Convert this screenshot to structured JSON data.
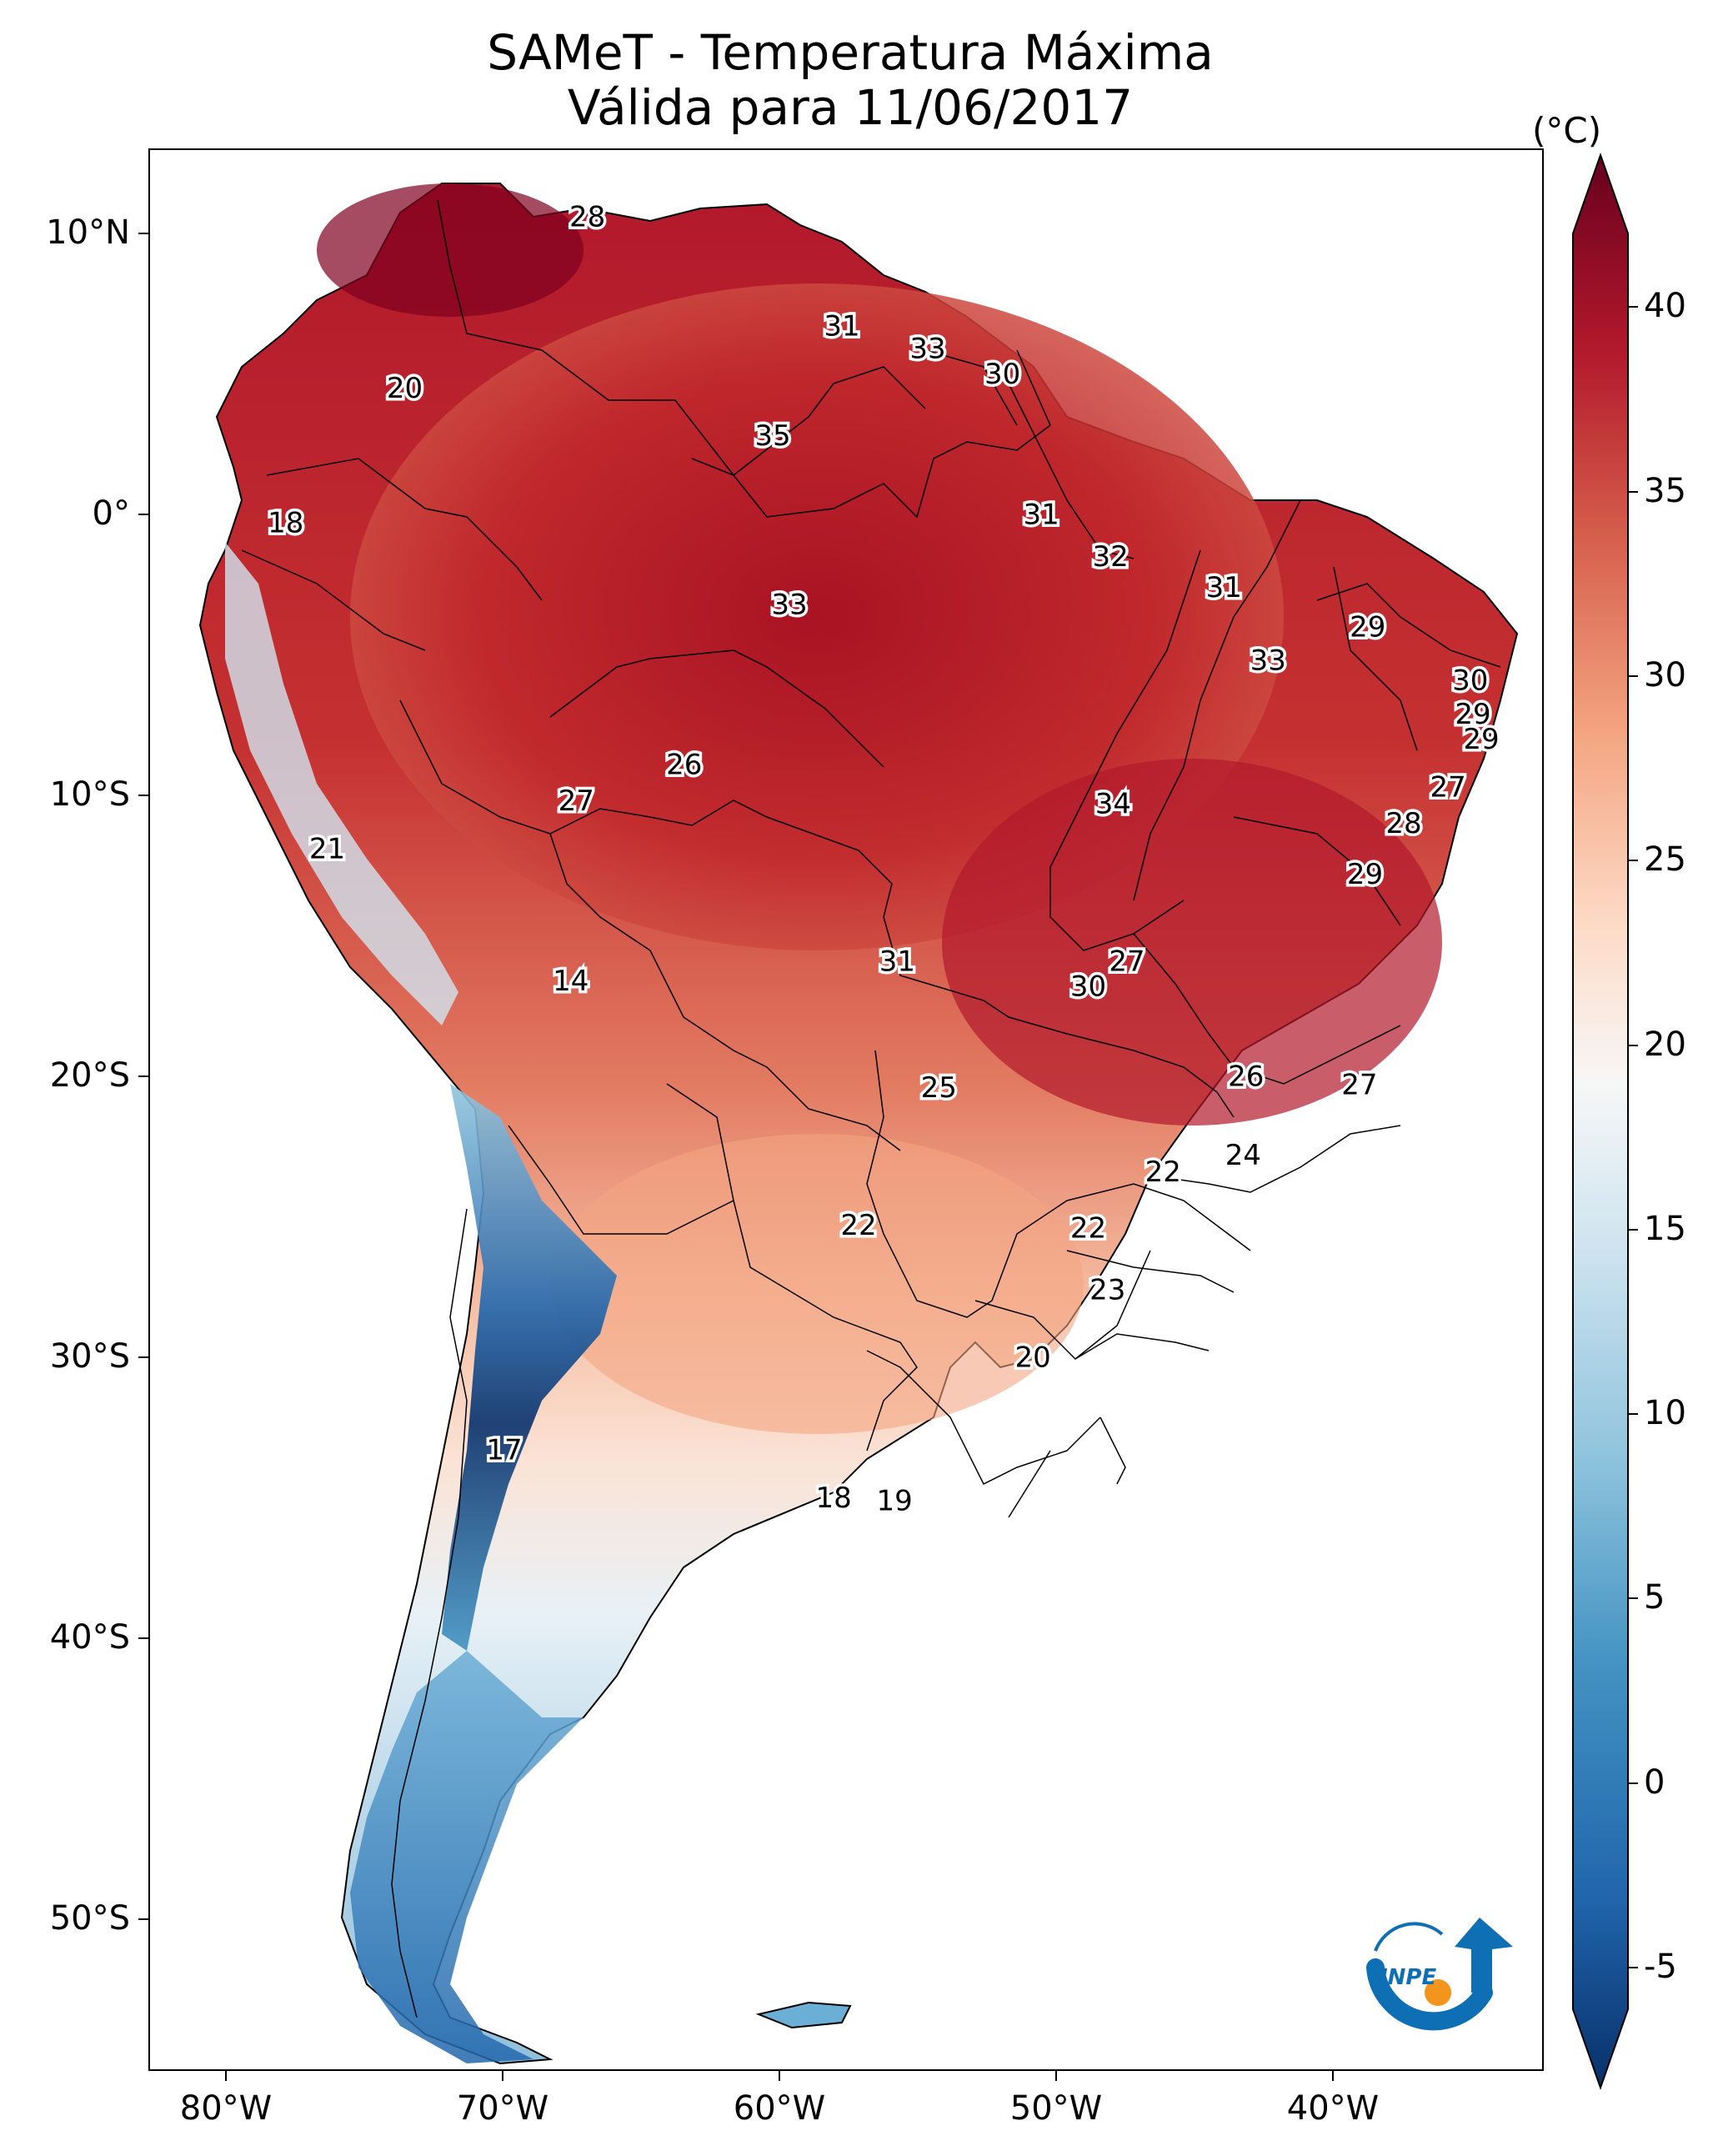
{
  "title_line1": "SAMeT - Temperatura Máxima",
  "title_line2": "Válida para 11/06/2017",
  "colorbar": {
    "unit": "(°C)",
    "ticks": [
      "40",
      "35",
      "30",
      "25",
      "20",
      "15",
      "10",
      "5",
      "0",
      "-5"
    ],
    "range": [
      -5,
      40
    ],
    "colors": [
      "#08306b",
      "#2166ac",
      "#4393c3",
      "#92c5de",
      "#d1e5f0",
      "#f7f7f7",
      "#fddbc7",
      "#f4a582",
      "#d6604d",
      "#b2182b",
      "#67001f"
    ]
  },
  "axes": {
    "lon_labels": [
      "80°W",
      "70°W",
      "60°W",
      "50°W",
      "40°W"
    ],
    "lat_labels": [
      "10°N",
      "0°",
      "10°S",
      "20°S",
      "30°S",
      "40°S",
      "50°S"
    ]
  },
  "logo_text": "INPE",
  "map_labels": [
    {
      "value": "28",
      "lon": -67.0,
      "lat": 10.6
    },
    {
      "value": "31",
      "lon": -57.8,
      "lat": 6.7
    },
    {
      "value": "33",
      "lon": -54.7,
      "lat": 5.9
    },
    {
      "value": "30",
      "lon": -52.0,
      "lat": 5.0
    },
    {
      "value": "20",
      "lon": -73.6,
      "lat": 4.5
    },
    {
      "value": "35",
      "lon": -60.3,
      "lat": 2.8
    },
    {
      "value": "18",
      "lon": -77.9,
      "lat": -0.3
    },
    {
      "value": "31",
      "lon": -50.6,
      "lat": 0.0
    },
    {
      "value": "32",
      "lon": -48.1,
      "lat": -1.5
    },
    {
      "value": "31",
      "lon": -44.0,
      "lat": -2.6
    },
    {
      "value": "33",
      "lon": -59.7,
      "lat": -3.2
    },
    {
      "value": "29",
      "lon": -38.8,
      "lat": -4.0
    },
    {
      "value": "33",
      "lon": -42.4,
      "lat": -5.2
    },
    {
      "value": "30",
      "lon": -35.1,
      "lat": -5.9
    },
    {
      "value": "29",
      "lon": -35.0,
      "lat": -7.1
    },
    {
      "value": "29",
      "lon": -34.7,
      "lat": -8.0
    },
    {
      "value": "26",
      "lon": -63.5,
      "lat": -8.9
    },
    {
      "value": "27",
      "lon": -35.9,
      "lat": -9.7
    },
    {
      "value": "27",
      "lon": -67.4,
      "lat": -10.2
    },
    {
      "value": "34",
      "lon": -48.0,
      "lat": -10.3
    },
    {
      "value": "28",
      "lon": -37.5,
      "lat": -11.0
    },
    {
      "value": "21",
      "lon": -76.4,
      "lat": -11.9
    },
    {
      "value": "29",
      "lon": -38.9,
      "lat": -12.8
    },
    {
      "value": "31",
      "lon": -55.8,
      "lat": -15.9
    },
    {
      "value": "27",
      "lon": -47.5,
      "lat": -15.9
    },
    {
      "value": "30",
      "lon": -48.9,
      "lat": -16.8
    },
    {
      "value": "14",
      "lon": -67.6,
      "lat": -16.6
    },
    {
      "value": "26",
      "lon": -43.2,
      "lat": -20.0
    },
    {
      "value": "25",
      "lon": -54.3,
      "lat": -20.4
    },
    {
      "value": "27",
      "lon": -39.1,
      "lat": -20.3
    },
    {
      "value": "24",
      "lon": -43.3,
      "lat": -22.8
    },
    {
      "value": "22",
      "lon": -46.2,
      "lat": -23.4
    },
    {
      "value": "22",
      "lon": -57.2,
      "lat": -25.3
    },
    {
      "value": "22",
      "lon": -48.9,
      "lat": -25.4
    },
    {
      "value": "23",
      "lon": -48.2,
      "lat": -27.6
    },
    {
      "value": "20",
      "lon": -50.9,
      "lat": -30.0
    },
    {
      "value": "17",
      "lon": -70.0,
      "lat": -33.3
    },
    {
      "value": "18",
      "lon": -58.1,
      "lat": -35.0
    },
    {
      "value": "19",
      "lon": -55.9,
      "lat": -35.1
    }
  ]
}
